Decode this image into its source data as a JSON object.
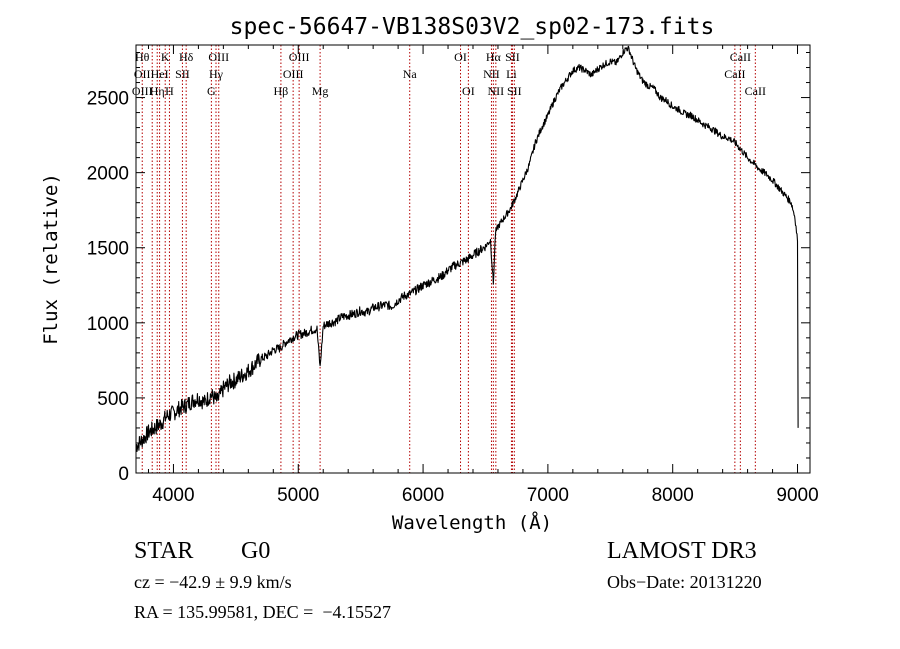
{
  "chart_data": {
    "type": "line",
    "title": "spec-56647-VB138S03V2_sp02-173.fits",
    "xlabel": "Wavelength (Å)",
    "ylabel": "Flux (relative)",
    "xlim": [
      3700,
      9100
    ],
    "ylim": [
      0,
      2850
    ],
    "x_ticks": [
      4000,
      5000,
      6000,
      7000,
      8000,
      9000
    ],
    "y_ticks": [
      0,
      500,
      1000,
      1500,
      2000,
      2500
    ],
    "series": [
      {
        "name": "flux",
        "color": "#000000",
        "x": [
          3700,
          3750,
          3800,
          3850,
          3900,
          3950,
          4000,
          4050,
          4100,
          4150,
          4200,
          4250,
          4300,
          4350,
          4400,
          4450,
          4500,
          4550,
          4600,
          4650,
          4700,
          4750,
          4800,
          4850,
          4900,
          4950,
          5000,
          5050,
          5100,
          5150,
          5175,
          5200,
          5250,
          5300,
          5350,
          5400,
          5450,
          5500,
          5550,
          5600,
          5650,
          5700,
          5750,
          5800,
          5850,
          5890,
          5950,
          6000,
          6050,
          6100,
          6150,
          6200,
          6250,
          6300,
          6350,
          6400,
          6450,
          6500,
          6540,
          6563,
          6580,
          6600,
          6650,
          6700,
          6750,
          6800,
          6850,
          6900,
          6950,
          7000,
          7050,
          7100,
          7150,
          7200,
          7250,
          7300,
          7350,
          7400,
          7450,
          7500,
          7550,
          7600,
          7630,
          7650,
          7700,
          7750,
          7800,
          7850,
          7900,
          7950,
          8000,
          8050,
          8100,
          8150,
          8200,
          8250,
          8300,
          8350,
          8400,
          8450,
          8500,
          8550,
          8600,
          8650,
          8700,
          8750,
          8800,
          8850,
          8900,
          8950,
          8980,
          9000,
          9005
        ],
        "values": [
          180,
          220,
          270,
          300,
          330,
          380,
          400,
          430,
          450,
          480,
          500,
          470,
          520,
          480,
          560,
          600,
          620,
          650,
          680,
          720,
          760,
          780,
          820,
          830,
          870,
          900,
          920,
          930,
          950,
          960,
          700,
          980,
          1000,
          1010,
          1040,
          1050,
          1060,
          1080,
          1070,
          1100,
          1110,
          1120,
          1110,
          1150,
          1180,
          1190,
          1220,
          1250,
          1270,
          1290,
          1310,
          1350,
          1380,
          1400,
          1420,
          1450,
          1480,
          1510,
          1550,
          1260,
          1600,
          1640,
          1700,
          1760,
          1850,
          1950,
          2050,
          2200,
          2300,
          2380,
          2480,
          2560,
          2620,
          2680,
          2700,
          2680,
          2650,
          2690,
          2720,
          2740,
          2730,
          2800,
          2830,
          2820,
          2700,
          2620,
          2580,
          2560,
          2500,
          2480,
          2440,
          2420,
          2390,
          2380,
          2350,
          2320,
          2300,
          2270,
          2240,
          2230,
          2200,
          2150,
          2100,
          2060,
          2020,
          1990,
          1950,
          1900,
          1850,
          1800,
          1700,
          1550,
          300
        ]
      }
    ],
    "line_markers": [
      {
        "wl": 3750,
        "labels": [
          {
            "text": "Hθ",
            "row": 1
          },
          {
            "text": "OII",
            "row": 2
          },
          {
            "text": "OIII",
            "row": 3
          }
        ]
      },
      {
        "wl": 3830,
        "labels": []
      },
      {
        "wl": 3870,
        "labels": [
          {
            "text": "Hη",
            "row": 3
          }
        ]
      },
      {
        "wl": 3889,
        "labels": [
          {
            "text": "HeI",
            "row": 2
          }
        ]
      },
      {
        "wl": 3934,
        "labels": [
          {
            "text": "K",
            "row": 1
          }
        ]
      },
      {
        "wl": 3968,
        "labels": [
          {
            "text": "H",
            "row": 3
          }
        ]
      },
      {
        "wl": 4072,
        "labels": [
          {
            "text": "SII",
            "row": 2
          }
        ]
      },
      {
        "wl": 4102,
        "labels": [
          {
            "text": "Hδ",
            "row": 1
          }
        ]
      },
      {
        "wl": 4304,
        "labels": [
          {
            "text": "G",
            "row": 3
          }
        ]
      },
      {
        "wl": 4341,
        "labels": [
          {
            "text": "Hγ",
            "row": 2
          }
        ]
      },
      {
        "wl": 4363,
        "labels": [
          {
            "text": "OIII",
            "row": 1
          }
        ]
      },
      {
        "wl": 4861,
        "labels": [
          {
            "text": "Hβ",
            "row": 3
          }
        ]
      },
      {
        "wl": 4959,
        "labels": [
          {
            "text": "OIII",
            "row": 2
          }
        ]
      },
      {
        "wl": 5007,
        "labels": [
          {
            "text": "OIII",
            "row": 1
          }
        ]
      },
      {
        "wl": 5175,
        "labels": [
          {
            "text": "Mg",
            "row": 3
          }
        ]
      },
      {
        "wl": 5893,
        "labels": [
          {
            "text": "Na",
            "row": 2
          }
        ]
      },
      {
        "wl": 6300,
        "labels": [
          {
            "text": "OI",
            "row": 1
          }
        ]
      },
      {
        "wl": 6363,
        "labels": [
          {
            "text": "OI",
            "row": 3
          }
        ]
      },
      {
        "wl": 6548,
        "labels": [
          {
            "text": "NII",
            "row": 2
          }
        ]
      },
      {
        "wl": 6563,
        "labels": [
          {
            "text": "Hα",
            "row": 1
          }
        ]
      },
      {
        "wl": 6583,
        "labels": [
          {
            "text": "NII",
            "row": 3
          }
        ]
      },
      {
        "wl": 6708,
        "labels": [
          {
            "text": "Li",
            "row": 2
          }
        ]
      },
      {
        "wl": 6716,
        "labels": [
          {
            "text": "SII",
            "row": 1
          }
        ]
      },
      {
        "wl": 6731,
        "labels": [
          {
            "text": "SII",
            "row": 3
          }
        ]
      },
      {
        "wl": 8498,
        "labels": [
          {
            "text": "CaII",
            "row": 2
          }
        ]
      },
      {
        "wl": 8542,
        "labels": [
          {
            "text": "CaII",
            "row": 1
          }
        ]
      },
      {
        "wl": 8662,
        "labels": [
          {
            "text": "CaII",
            "row": 3
          }
        ]
      }
    ]
  },
  "info": {
    "class_label": "STAR",
    "subclass": "G0",
    "survey": "LAMOST DR3",
    "cz": "cz = −42.9 ± 9.9 km/s",
    "obs_date": "Obs−Date: 20131220",
    "coords": "RA = 135.99581, DEC =  −4.15527"
  },
  "colors": {
    "line_marker": "#b40000",
    "spectrum": "#000000",
    "axis": "#000000"
  }
}
